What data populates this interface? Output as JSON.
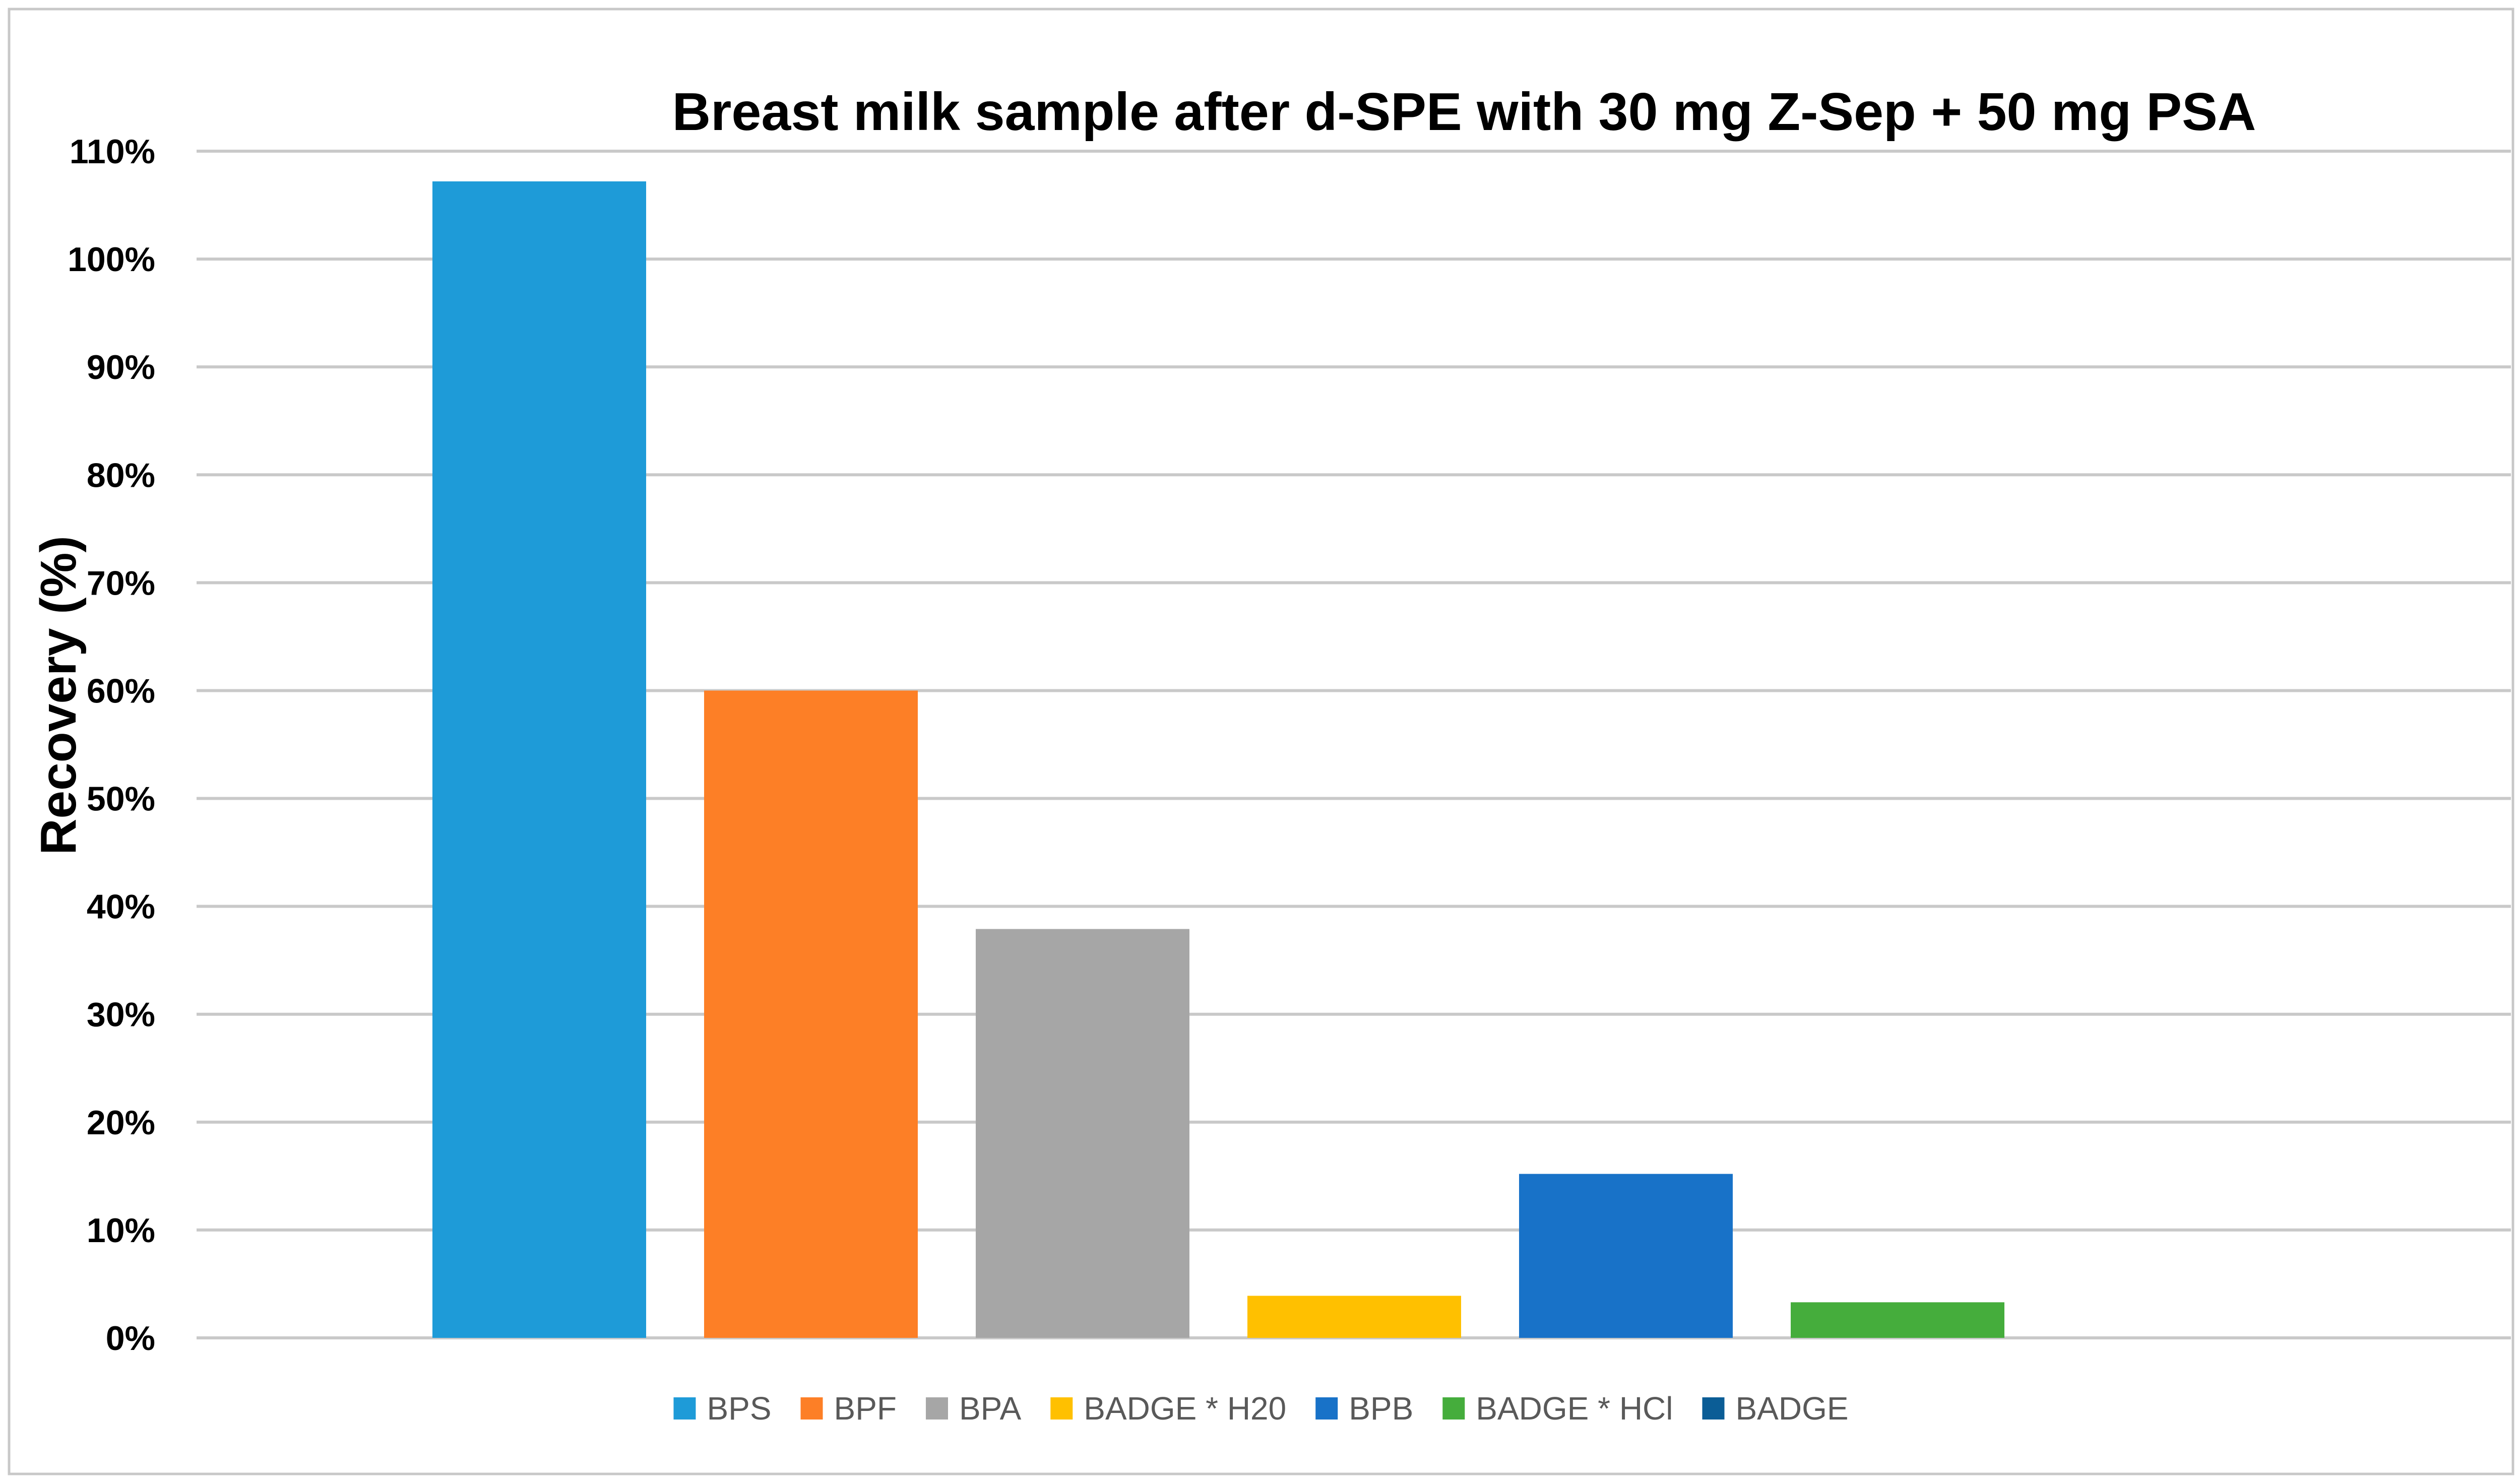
{
  "chart_data": {
    "type": "bar",
    "title": "Breast milk sample after d-SPE with 30 mg Z-Sep + 50 mg PSA",
    "ylabel": "Recovery (%)",
    "xlabel": "",
    "ylim": [
      0,
      110
    ],
    "ytick_values": [
      0,
      10,
      20,
      30,
      40,
      50,
      60,
      70,
      80,
      90,
      100,
      110
    ],
    "ytick_labels": [
      "0%",
      "10%",
      "20%",
      "30%",
      "40%",
      "50%",
      "60%",
      "70%",
      "80%",
      "90%",
      "100%",
      "110%"
    ],
    "grid": true,
    "legend_position": "bottom",
    "series": [
      {
        "name": "BPS",
        "value": 107.2,
        "color": "#1e9bd8"
      },
      {
        "name": "BPF",
        "value": 60.0,
        "color": "#fd7f26"
      },
      {
        "name": "BPA",
        "value": 37.9,
        "color": "#a6a6a6"
      },
      {
        "name": "BADGE * H20",
        "value": 3.9,
        "color": "#ffc000"
      },
      {
        "name": "BPB",
        "value": 15.2,
        "color": "#1872c8"
      },
      {
        "name": "BADGE * HCl",
        "value": 3.3,
        "color": "#45ad3c"
      },
      {
        "name": "BADGE",
        "value": 0,
        "color": "#0b5d96"
      }
    ]
  }
}
